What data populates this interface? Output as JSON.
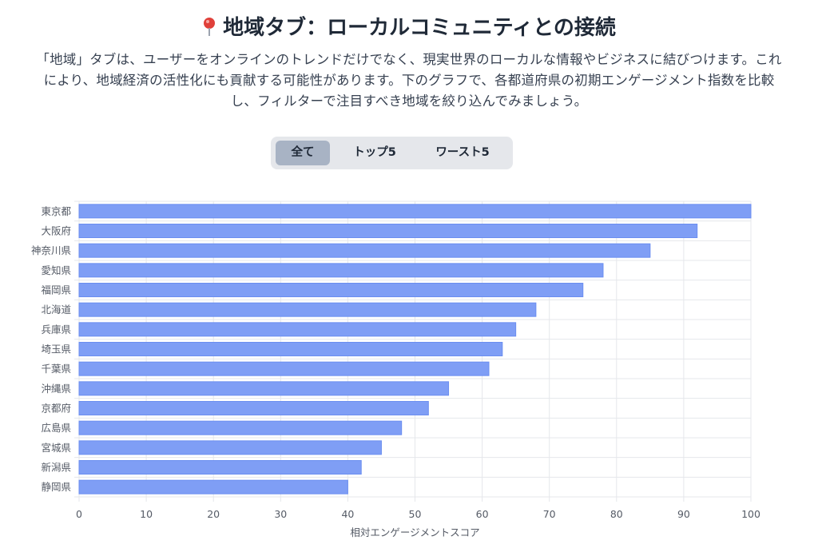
{
  "header": {
    "title": "地域タブ：ローカルコミュニティとの接続",
    "pin_icon": "round-pushpin-icon",
    "description": "「地域」タブは、ユーザーをオンラインのトレンドだけでなく、現実世界のローカルな情報やビジネスに結びつけます。これにより、地域経済の活性化にも貢献する可能性があります。下のグラフで、各都道府県の初期エンゲージメント指数を比較し、フィルターで注目すべき地域を絞り込んでみましょう。"
  },
  "filters": {
    "options": [
      "全て",
      "トップ5",
      "ワースト5"
    ],
    "active": "全て"
  },
  "colors": {
    "bar_fill": "#7f9ef5",
    "bar_stroke": "#6b8ef0",
    "grid": "#e5e7eb",
    "active_filter": "#a8b3c4"
  },
  "chart_data": {
    "type": "bar",
    "orientation": "horizontal",
    "categories": [
      "東京都",
      "大阪府",
      "神奈川県",
      "愛知県",
      "福岡県",
      "北海道",
      "兵庫県",
      "埼玉県",
      "千葉県",
      "沖縄県",
      "京都府",
      "広島県",
      "宮城県",
      "新潟県",
      "静岡県"
    ],
    "values": [
      100,
      92,
      85,
      78,
      75,
      68,
      65,
      63,
      61,
      55,
      52,
      48,
      45,
      42,
      40
    ],
    "xlim": [
      0,
      100
    ],
    "xticks": [
      0,
      10,
      20,
      30,
      40,
      50,
      60,
      70,
      80,
      90,
      100
    ],
    "xlabel": "相対エンゲージメントスコア",
    "ylabel": "",
    "grid": true,
    "legend": "none"
  }
}
